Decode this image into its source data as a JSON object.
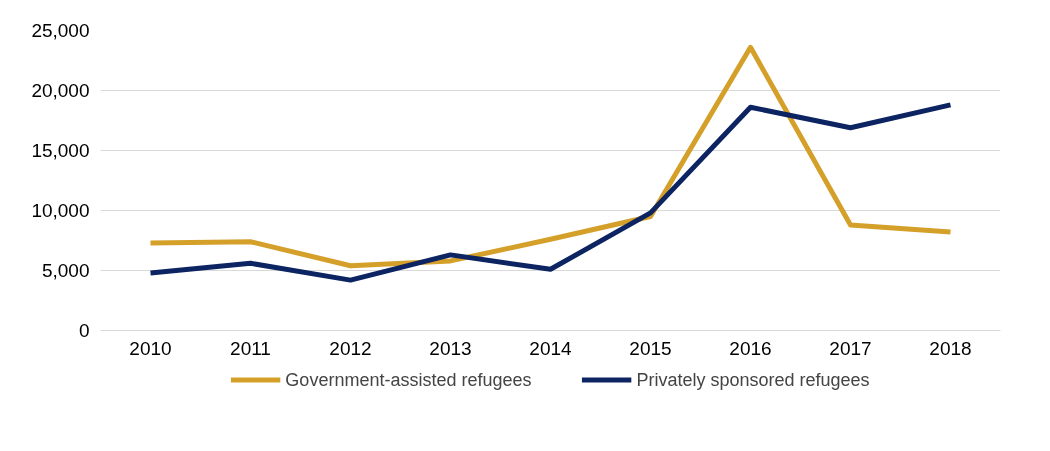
{
  "chart_data": {
    "type": "line",
    "categories": [
      "2010",
      "2011",
      "2012",
      "2013",
      "2014",
      "2015",
      "2016",
      "2017",
      "2018"
    ],
    "series": [
      {
        "name": "Government-assisted refugees",
        "color": "#d4a02a",
        "values": [
          7300,
          7400,
          5400,
          5800,
          7600,
          9500,
          23600,
          8800,
          8200
        ]
      },
      {
        "name": "Privately sponsored refugees",
        "color": "#0c2461",
        "values": [
          4800,
          5600,
          4200,
          6300,
          5100,
          9800,
          18600,
          16900,
          18800
        ]
      }
    ],
    "ylim": [
      0,
      25000
    ],
    "yticks": [
      {
        "value": 0,
        "label": "0"
      },
      {
        "value": 5000,
        "label": "5,000"
      },
      {
        "value": 10000,
        "label": "10,000"
      },
      {
        "value": 15000,
        "label": "15,000"
      },
      {
        "value": 20000,
        "label": "20,000"
      },
      {
        "value": 25000,
        "label": "25,000"
      }
    ],
    "grid": "y",
    "legend": "bottom",
    "marker": "none",
    "line_style": "solid"
  }
}
